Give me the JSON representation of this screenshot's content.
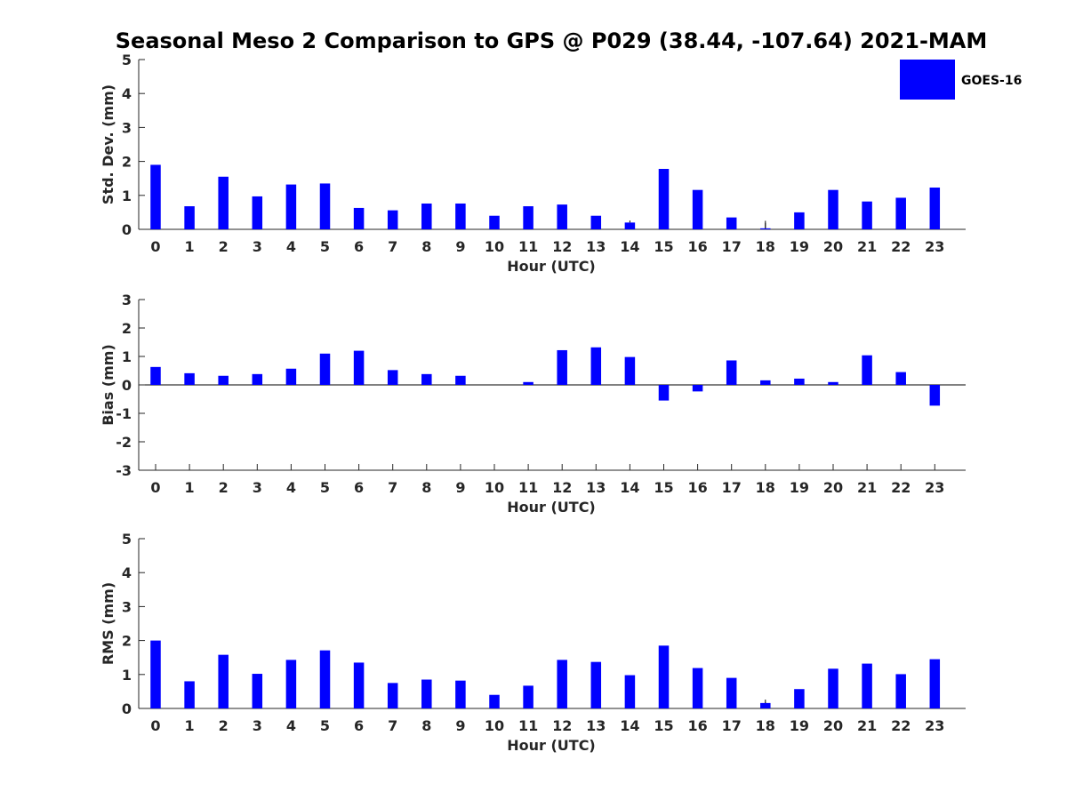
{
  "chart_data": {
    "type": "bar",
    "title": "Seasonal Meso 2 Comparison to GPS @ P029 (38.44, -107.64) 2021-MAM",
    "legend": {
      "label": "GOES-16",
      "color": "#0000ff",
      "placement": "top-right"
    },
    "categories": [
      "0",
      "1",
      "2",
      "3",
      "4",
      "5",
      "6",
      "7",
      "8",
      "9",
      "10",
      "11",
      "12",
      "13",
      "14",
      "15",
      "16",
      "17",
      "18",
      "19",
      "20",
      "21",
      "22",
      "23"
    ],
    "panels": [
      {
        "id": "std",
        "ylabel": "Std. Dev. (mm)",
        "xlabel": "Hour (UTC)",
        "ylim": [
          0,
          5
        ],
        "yticks": [
          0,
          1,
          2,
          3,
          4,
          5
        ],
        "values": [
          1.9,
          0.68,
          1.55,
          0.97,
          1.32,
          1.35,
          0.63,
          0.56,
          0.76,
          0.76,
          0.4,
          0.68,
          0.73,
          0.4,
          0.2,
          1.78,
          1.16,
          0.35,
          0.03,
          0.5,
          1.16,
          0.82,
          0.93,
          1.23
        ],
        "errors": [
          null,
          null,
          null,
          null,
          null,
          null,
          null,
          null,
          null,
          null,
          null,
          null,
          null,
          null,
          0.06,
          null,
          null,
          null,
          0.22,
          null,
          null,
          null,
          null,
          null
        ]
      },
      {
        "id": "bias",
        "ylabel": "Bias (mm)",
        "xlabel": "Hour (UTC)",
        "ylim": [
          -3,
          3
        ],
        "yticks": [
          -3,
          -2,
          -1,
          0,
          1,
          2,
          3
        ],
        "zero_line": true,
        "values": [
          0.63,
          0.41,
          0.32,
          0.38,
          0.57,
          1.1,
          1.2,
          0.52,
          0.38,
          0.32,
          0.0,
          0.1,
          1.22,
          1.32,
          0.98,
          -0.55,
          -0.23,
          0.86,
          0.16,
          0.22,
          0.1,
          1.04,
          0.45,
          -0.73
        ],
        "errors": []
      },
      {
        "id": "rms",
        "ylabel": "RMS (mm)",
        "xlabel": "Hour (UTC)",
        "ylim": [
          0,
          5
        ],
        "yticks": [
          0,
          1,
          2,
          3,
          4,
          5
        ],
        "values": [
          2.0,
          0.8,
          1.58,
          1.02,
          1.43,
          1.71,
          1.35,
          0.75,
          0.85,
          0.82,
          0.4,
          0.67,
          1.43,
          1.37,
          0.98,
          1.85,
          1.19,
          0.9,
          0.16,
          0.57,
          1.17,
          1.32,
          1.01,
          1.45
        ],
        "errors": [
          null,
          null,
          null,
          null,
          null,
          null,
          null,
          null,
          null,
          null,
          null,
          null,
          null,
          null,
          null,
          null,
          null,
          null,
          0.1,
          null,
          null,
          null,
          null,
          null
        ]
      }
    ]
  }
}
